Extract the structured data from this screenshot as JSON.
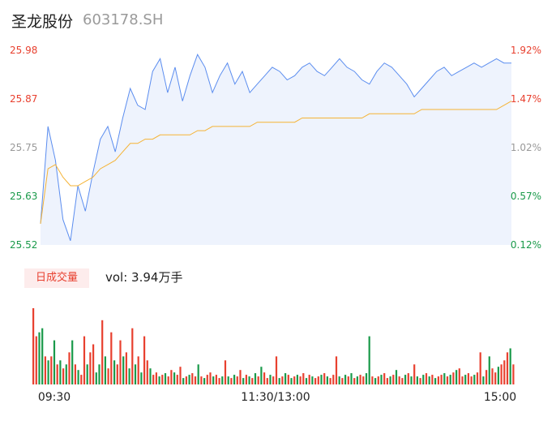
{
  "stock": {
    "name": "圣龙股份",
    "code": "603178.SH"
  },
  "volume": {
    "tag": "日成交量",
    "value_text": "vol: 3.94万手"
  },
  "colors": {
    "up": "#e8402f",
    "down": "#1a9a4a",
    "neutral": "#999999",
    "price_line": "#5b8def",
    "avg_line": "#f5b335",
    "fill": "#eef3fd"
  },
  "chart_data": [
    {
      "type": "line",
      "name": "intraday-price",
      "y_left_ticks": [
        "25.98",
        "25.87",
        "25.75",
        "25.63",
        "25.52"
      ],
      "y_right_ticks": [
        "1.92%",
        "1.47%",
        "1.02%",
        "0.57%",
        "0.12%"
      ],
      "ylim": [
        25.52,
        25.98
      ],
      "x_ticks": [
        "09:30",
        "11:30/13:00",
        "15:00"
      ],
      "price": [
        25.57,
        25.8,
        25.72,
        25.58,
        25.53,
        25.66,
        25.6,
        25.69,
        25.77,
        25.8,
        25.74,
        25.82,
        25.89,
        25.85,
        25.84,
        25.93,
        25.96,
        25.88,
        25.94,
        25.86,
        25.92,
        25.97,
        25.94,
        25.88,
        25.92,
        25.95,
        25.9,
        25.93,
        25.88,
        25.9,
        25.92,
        25.94,
        25.93,
        25.91,
        25.92,
        25.94,
        25.95,
        25.93,
        25.92,
        25.94,
        25.96,
        25.94,
        25.93,
        25.91,
        25.9,
        25.93,
        25.95,
        25.94,
        25.92,
        25.9,
        25.87,
        25.89,
        25.91,
        25.93,
        25.94,
        25.92,
        25.93,
        25.94,
        25.95,
        25.94,
        25.95,
        25.96,
        25.95,
        25.95
      ],
      "avg": [
        25.57,
        25.7,
        25.71,
        25.68,
        25.66,
        25.66,
        25.67,
        25.68,
        25.7,
        25.71,
        25.72,
        25.74,
        25.76,
        25.76,
        25.77,
        25.77,
        25.78,
        25.78,
        25.78,
        25.78,
        25.78,
        25.79,
        25.79,
        25.8,
        25.8,
        25.8,
        25.8,
        25.8,
        25.8,
        25.81,
        25.81,
        25.81,
        25.81,
        25.81,
        25.81,
        25.82,
        25.82,
        25.82,
        25.82,
        25.82,
        25.82,
        25.82,
        25.82,
        25.82,
        25.83,
        25.83,
        25.83,
        25.83,
        25.83,
        25.83,
        25.83,
        25.84,
        25.84,
        25.84,
        25.84,
        25.84,
        25.84,
        25.84,
        25.84,
        25.84,
        25.84,
        25.84,
        25.85,
        25.86
      ],
      "price_min_hint": 25.52
    },
    {
      "type": "bar",
      "name": "intraday-volume",
      "values": [
        95,
        60,
        65,
        70,
        35,
        30,
        35,
        55,
        25,
        30,
        20,
        25,
        40,
        55,
        25,
        18,
        12,
        60,
        25,
        40,
        50,
        15,
        25,
        80,
        35,
        20,
        65,
        30,
        25,
        55,
        35,
        40,
        20,
        70,
        25,
        35,
        15,
        60,
        30,
        20,
        12,
        15,
        10,
        12,
        14,
        10,
        18,
        15,
        12,
        22,
        8,
        10,
        12,
        14,
        10,
        25,
        10,
        8,
        12,
        15,
        10,
        12,
        8,
        10,
        30,
        10,
        8,
        12,
        10,
        18,
        8,
        12,
        10,
        8,
        14,
        10,
        22,
        15,
        8,
        12,
        10,
        35,
        8,
        10,
        14,
        12,
        8,
        10,
        12,
        10,
        14,
        8,
        12,
        10,
        8,
        10,
        12,
        14,
        10,
        8,
        12,
        35,
        10,
        8,
        12,
        10,
        14,
        8,
        10,
        12,
        10,
        14,
        60,
        10,
        8,
        10,
        12,
        14,
        8,
        10,
        12,
        18,
        10,
        8,
        12,
        14,
        10,
        25,
        10,
        8,
        12,
        14,
        10,
        12,
        8,
        10,
        12,
        14,
        10,
        12,
        15,
        18,
        20,
        10,
        12,
        14,
        10,
        12,
        15,
        40,
        10,
        18,
        35,
        20,
        15,
        22,
        25,
        30,
        40,
        45,
        25
      ],
      "colors": [
        "u",
        "u",
        "d",
        "d",
        "u",
        "d",
        "u",
        "d",
        "u",
        "d",
        "u",
        "d",
        "u",
        "d",
        "u",
        "d",
        "u",
        "u",
        "d",
        "u",
        "u",
        "d",
        "d",
        "u",
        "d",
        "u",
        "u",
        "d",
        "u",
        "u",
        "d",
        "u",
        "d",
        "u",
        "d",
        "u",
        "d",
        "u",
        "u",
        "d",
        "u",
        "u",
        "d",
        "u",
        "d",
        "u",
        "u",
        "d",
        "u",
        "u",
        "d",
        "u",
        "d",
        "u",
        "u",
        "d",
        "u",
        "d",
        "u",
        "u",
        "d",
        "u",
        "u",
        "d",
        "u",
        "d",
        "u",
        "d",
        "u",
        "u",
        "d",
        "u",
        "d",
        "u",
        "d",
        "u",
        "d",
        "u",
        "u",
        "d",
        "u",
        "u",
        "d",
        "u",
        "d",
        "u",
        "d",
        "u",
        "d",
        "u",
        "u",
        "d",
        "u",
        "d",
        "u",
        "u",
        "d",
        "u",
        "d",
        "u",
        "u",
        "u",
        "d",
        "u",
        "d",
        "u",
        "d",
        "u",
        "d",
        "u",
        "u",
        "d",
        "d",
        "u",
        "d",
        "u",
        "d",
        "u",
        "u",
        "d",
        "u",
        "d",
        "u",
        "u",
        "d",
        "u",
        "d",
        "u",
        "d",
        "u",
        "d",
        "u",
        "d",
        "u",
        "d",
        "u",
        "u",
        "d",
        "u",
        "d",
        "u",
        "d",
        "u",
        "u",
        "d",
        "u",
        "u",
        "d",
        "u",
        "u",
        "d",
        "u",
        "d",
        "u",
        "u",
        "d",
        "u",
        "u",
        "u",
        "d",
        "u"
      ]
    }
  ]
}
